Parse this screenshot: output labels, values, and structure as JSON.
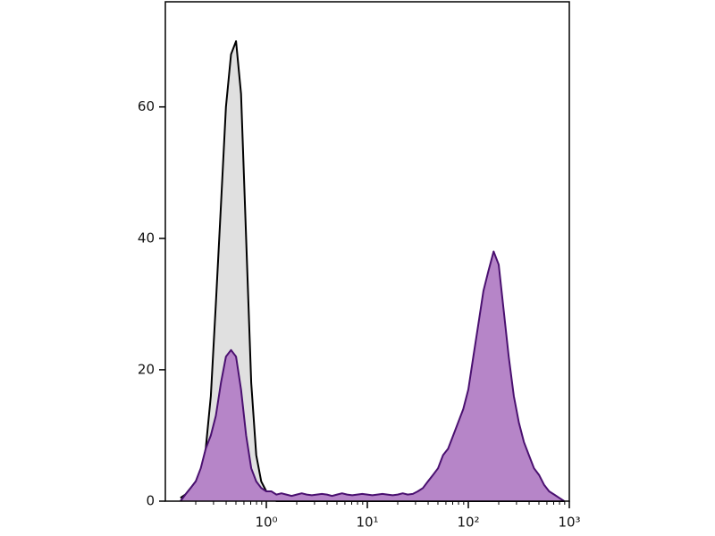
{
  "chart_data": {
    "type": "area",
    "x": [
      0.141,
      0.158,
      0.178,
      0.2,
      0.224,
      0.251,
      0.282,
      0.316,
      0.355,
      0.398,
      0.447,
      0.501,
      0.562,
      0.631,
      0.708,
      0.794,
      0.891,
      1,
      1.12,
      1.26,
      1.41,
      1.58,
      1.78,
      2,
      2.24,
      2.51,
      2.82,
      3.16,
      3.55,
      3.98,
      4.47,
      5.01,
      5.62,
      6.31,
      7.08,
      7.94,
      8.91,
      10,
      11.2,
      12.6,
      14.1,
      15.8,
      17.8,
      20,
      22.4,
      25.1,
      28.2,
      31.6,
      35.5,
      39.8,
      44.7,
      50.1,
      56.2,
      63.1,
      70.8,
      79.4,
      89.1,
      100,
      112,
      126,
      141,
      158,
      178,
      200,
      224,
      251,
      282,
      316,
      355,
      398,
      447,
      501,
      562,
      631,
      708,
      794,
      891
    ],
    "series": [
      {
        "color": "#000000",
        "fill": "#e0e0e0",
        "values": [
          0.5,
          1,
          2,
          3,
          4,
          8,
          16,
          30,
          45,
          60,
          68,
          70,
          62,
          40,
          18,
          7,
          3,
          1.5,
          0.5,
          0,
          0,
          0,
          0,
          0,
          0,
          0,
          0,
          0,
          0,
          0,
          0,
          0,
          0,
          0,
          0,
          0,
          0,
          0,
          0,
          0,
          0,
          0,
          0,
          0,
          0,
          0,
          0,
          0,
          0,
          0,
          0,
          0,
          0,
          0,
          0,
          0,
          0,
          0,
          0,
          0,
          0,
          0,
          0,
          0,
          0,
          0,
          0,
          0,
          0,
          0,
          0,
          0,
          0,
          0,
          0,
          0,
          0
        ]
      },
      {
        "color": "#4a1070",
        "fill": "#b685c8",
        "values": [
          0,
          1,
          2,
          3,
          5,
          8,
          10,
          13,
          18,
          22,
          23,
          22,
          17,
          10,
          5,
          3,
          2,
          1.5,
          1.5,
          1,
          1.2,
          1,
          0.8,
          1,
          1.2,
          1,
          0.9,
          1,
          1.1,
          1,
          0.8,
          1,
          1.2,
          1,
          0.9,
          1,
          1.1,
          1,
          0.9,
          1,
          1.1,
          1,
          0.9,
          1,
          1.2,
          1,
          1.1,
          1.5,
          2,
          3,
          4,
          5,
          7,
          8,
          10,
          12,
          14,
          17,
          22,
          27,
          32,
          35,
          38,
          36,
          29,
          22,
          16,
          12,
          9,
          7,
          5,
          4,
          2.5,
          1.5,
          1,
          0.5,
          0
        ]
      }
    ],
    "xlim": [
      0.1,
      1000
    ],
    "log_x": true,
    "xticks": [
      {
        "value": 1,
        "label": "10⁰"
      },
      {
        "value": 10,
        "label": "10¹"
      },
      {
        "value": 100,
        "label": "10²"
      },
      {
        "value": 1000,
        "label": "10³"
      }
    ],
    "ylim": [
      0,
      76
    ],
    "yticks": [
      0,
      20,
      40,
      60
    ]
  }
}
